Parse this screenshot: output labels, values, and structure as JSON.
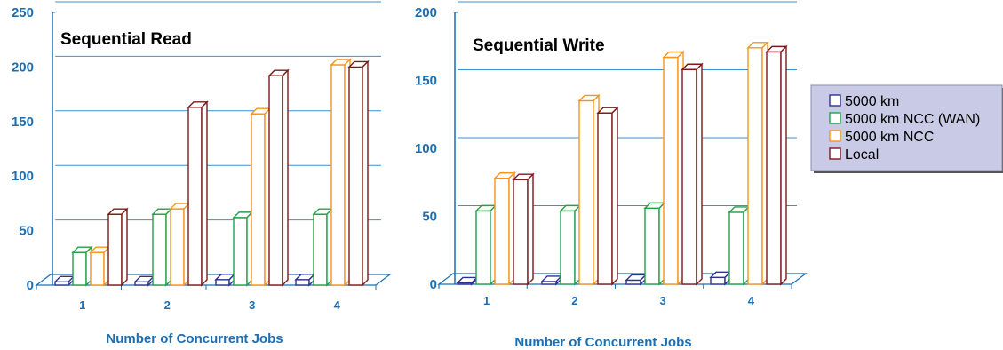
{
  "colors": {
    "axis": "#1a6fb4",
    "grid": "#3d8fd1",
    "legend_bg": "#c9cbe6",
    "label": "#1a6fb4"
  },
  "legend": {
    "position": "right",
    "entries": [
      {
        "name": "5000 km",
        "color": "#2e3192"
      },
      {
        "name": "5000 km NCC (WAN)",
        "color": "#22a046"
      },
      {
        "name": "5000 km NCC",
        "color": "#f7941d"
      },
      {
        "name": "Local",
        "color": "#7b1a1a"
      }
    ]
  },
  "chart_data": [
    {
      "type": "bar",
      "title": "Sequential Read",
      "xlabel": "Number of Concurrent Jobs",
      "ylabel": "",
      "ylim": [
        0,
        250
      ],
      "yticks": [
        "0",
        "50",
        "100",
        "150",
        "200",
        "250"
      ],
      "categories": [
        "1",
        "2",
        "3",
        "4"
      ],
      "grid": true,
      "series": [
        {
          "name": "5000 km",
          "values": [
            3,
            3,
            5,
            5
          ]
        },
        {
          "name": "5000 km NCC (WAN)",
          "values": [
            30,
            65,
            62,
            65
          ]
        },
        {
          "name": "5000 km NCC",
          "values": [
            30,
            70,
            157,
            202
          ]
        },
        {
          "name": "Local",
          "values": [
            65,
            163,
            192,
            200
          ]
        }
      ]
    },
    {
      "type": "bar",
      "title": "Sequential Write",
      "xlabel": "Number of Concurrent Jobs",
      "ylabel": "",
      "ylim": [
        0,
        200
      ],
      "yticks": [
        "0",
        "50",
        "100",
        "150",
        "200"
      ],
      "categories": [
        "1",
        "2",
        "3",
        "4"
      ],
      "grid": true,
      "series": [
        {
          "name": "5000 km",
          "values": [
            1,
            2,
            3,
            5
          ]
        },
        {
          "name": "5000 km NCC (WAN)",
          "values": [
            54,
            54,
            56,
            53
          ]
        },
        {
          "name": "5000 km NCC",
          "values": [
            78,
            135,
            167,
            174
          ]
        },
        {
          "name": "Local",
          "values": [
            77,
            126,
            158,
            171
          ]
        }
      ]
    }
  ]
}
